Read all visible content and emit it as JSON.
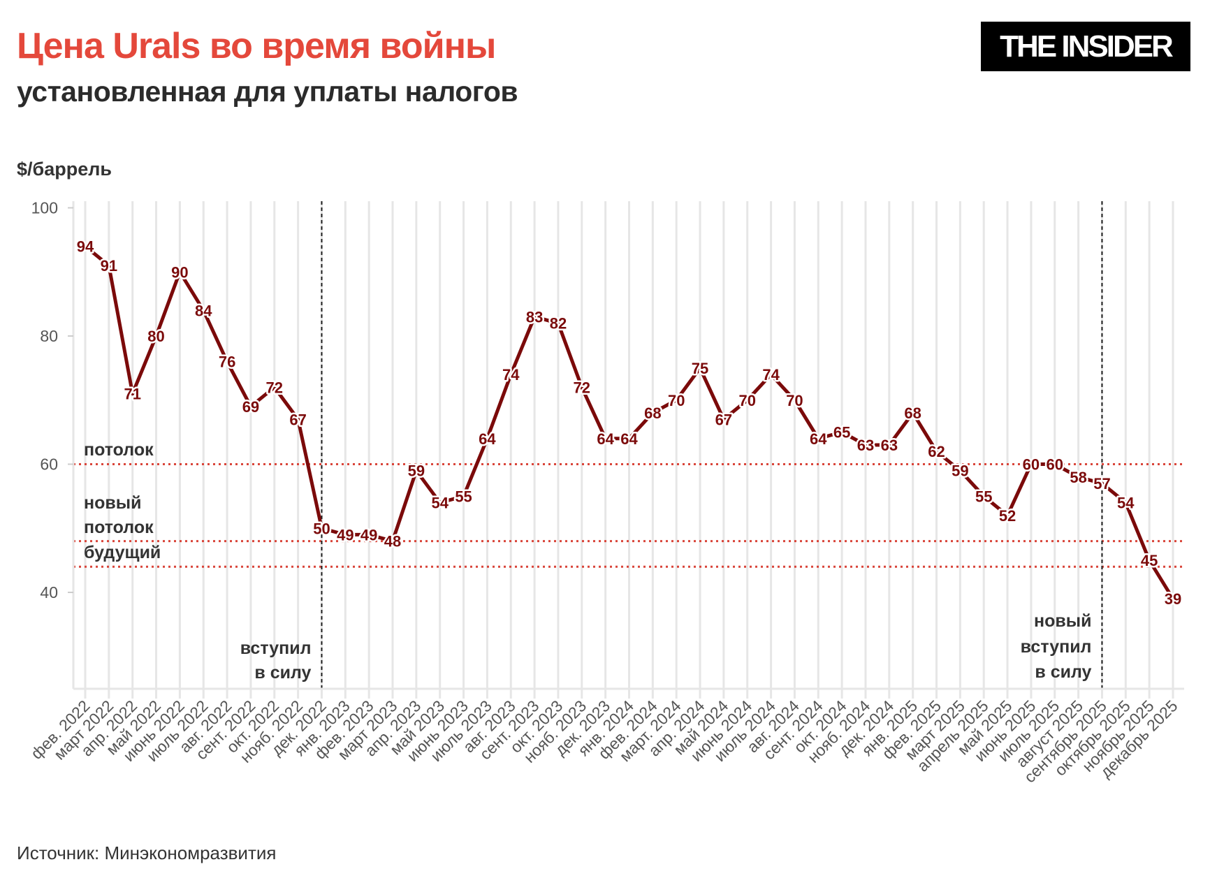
{
  "header": {
    "title": "Цена Urals во время войны",
    "subtitle": "установленная для уплаты налогов",
    "logo_text": "THE INSIDER"
  },
  "footer": {
    "source": "Источник: Минэкономразвития"
  },
  "colors": {
    "title": "#e4483b",
    "line": "#7b0a0a",
    "reference": "#d9453a",
    "marker_line": "#222222",
    "grid": "#e6e6e6"
  },
  "chart_data": {
    "type": "line",
    "title": "Цена Urals во время войны",
    "subtitle": "установленная для уплаты налогов",
    "ylabel": "$/баррель",
    "xlabel": "",
    "ylim": [
      25,
      100
    ],
    "yticks": [
      40,
      60,
      80,
      100
    ],
    "grid": "vertical",
    "categories": [
      "фев. 2022",
      "март 2022",
      "апр. 2022",
      "май 2022",
      "июнь 2022",
      "июль 2022",
      "авг. 2022",
      "сент. 2022",
      "окт. 2022",
      "нояб. 2022",
      "дек. 2022",
      "янв. 2023",
      "фев. 2023",
      "март 2023",
      "апр. 2023",
      "май 2023",
      "июнь 2023",
      "июль 2023",
      "авг. 2023",
      "сент. 2023",
      "окт. 2023",
      "нояб. 2023",
      "дек. 2023",
      "янв. 2024",
      "фев. 2024",
      "март. 2024",
      "апр. 2024",
      "май 2024",
      "июнь 2024",
      "июль 2024",
      "авг. 2024",
      "сент. 2024",
      "окт. 2024",
      "нояб. 2024",
      "дек. 2024",
      "янв. 2025",
      "фев. 2025",
      "март 2025",
      "апрель 2025",
      "май 2025",
      "июнь 2025",
      "июль 2025",
      "август 2025",
      "сентябрь 2025",
      "октябрь 2025",
      "ноябрь 2025",
      "декабрь 2025"
    ],
    "values": [
      94,
      91,
      71,
      80,
      90,
      84,
      76,
      69,
      72,
      67,
      50,
      49,
      49,
      48,
      59,
      54,
      55,
      64,
      74,
      83,
      82,
      72,
      64,
      64,
      68,
      70,
      75,
      67,
      70,
      74,
      70,
      64,
      65,
      63,
      63,
      68,
      62,
      59,
      55,
      52,
      60,
      60,
      58,
      57,
      54,
      45,
      39
    ],
    "reference_lines": [
      {
        "value": 60,
        "label_lines": [
          "потолок"
        ]
      },
      {
        "value": 48,
        "label_lines": [
          "новый",
          "потолок"
        ]
      },
      {
        "value": 44,
        "label_lines": [
          "будущий"
        ]
      }
    ],
    "event_lines": [
      {
        "category": "дек. 2022",
        "label_lines": [
          "вступил",
          "в силу"
        ]
      },
      {
        "category": "сентябрь 2025",
        "label_lines": [
          "новый",
          "вступил",
          "в силу"
        ]
      }
    ]
  }
}
